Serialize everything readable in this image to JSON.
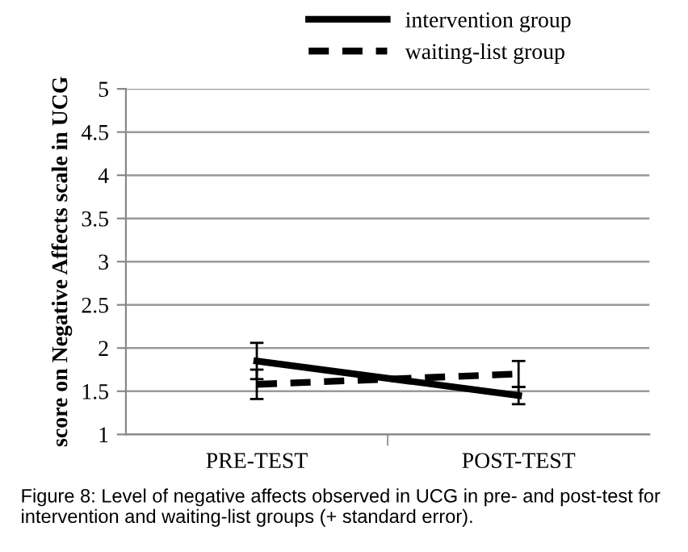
{
  "chart_data": {
    "type": "line",
    "ylabel": "score on Negative Affects scale in UCG",
    "categories": [
      "PRE-TEST",
      "POST-TEST"
    ],
    "series": [
      {
        "name": "intervention group",
        "color": "#000000",
        "line_style": "solid",
        "values": [
          1.85,
          1.45
        ],
        "errors": [
          0.21,
          0.1
        ]
      },
      {
        "name": "waiting-list group",
        "color": "#000000",
        "line_style": "dashed",
        "values": [
          1.58,
          1.7
        ],
        "errors": [
          0.17,
          0.15
        ]
      }
    ],
    "ylim": [
      1,
      5
    ],
    "yticks": [
      1,
      1.5,
      2,
      2.5,
      3,
      3.5,
      4,
      4.5,
      5
    ],
    "grid": "y",
    "legend": "top",
    "marker": "none",
    "annotations": [
      "Figure 8: Level of negative affects observed in UCG in pre- and post-test for intervention and waiting-list groups (+ standard error)."
    ]
  }
}
